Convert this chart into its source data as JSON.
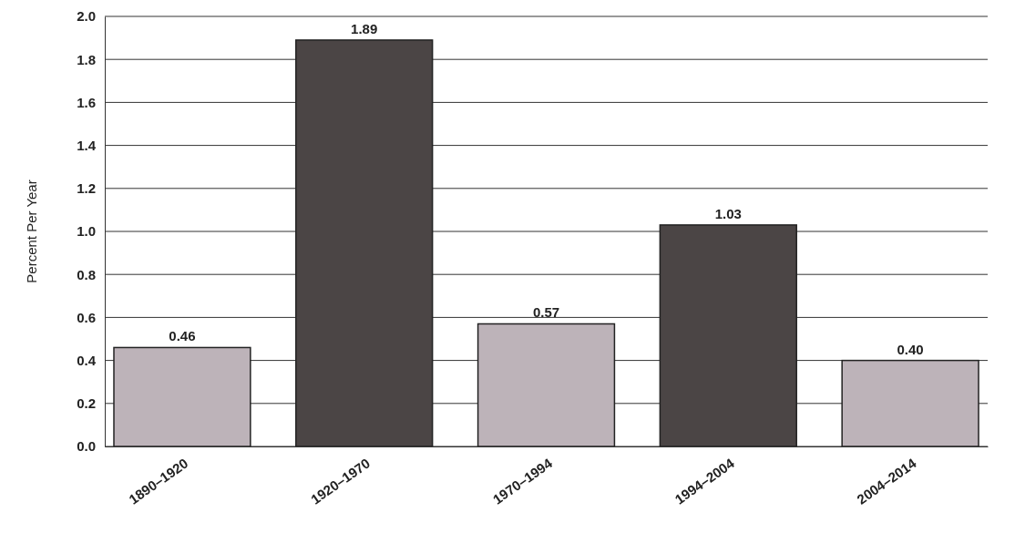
{
  "chart_data": {
    "type": "bar",
    "ylabel": "Percent Per Year",
    "categories": [
      "1890–1920",
      "1920–1970",
      "1970–1994",
      "1994–2004",
      "2004–2014"
    ],
    "values": [
      0.46,
      1.89,
      0.57,
      1.03,
      0.4
    ],
    "colors": [
      "#bdb3b9",
      "#4b4545",
      "#bdb3b9",
      "#4b4545",
      "#bdb3b9"
    ],
    "ylim": [
      0,
      2.0
    ],
    "yticks": [
      {
        "value": 0,
        "label": "0.0"
      },
      {
        "value": 0.2,
        "label": "0.2"
      },
      {
        "value": 0.4,
        "label": "0.4"
      },
      {
        "value": 0.6,
        "label": "0.6"
      },
      {
        "value": 0.8,
        "label": "0.8"
      },
      {
        "value": 1.0,
        "label": "1.0"
      },
      {
        "value": 1.2,
        "label": "1.2"
      },
      {
        "value": 1.4,
        "label": "1.4"
      },
      {
        "value": 1.6,
        "label": "1.6"
      },
      {
        "value": 1.8,
        "label": "1.8"
      },
      {
        "value": 2.0,
        "label": "2.0"
      }
    ],
    "value_labels": [
      "0.46",
      "1.89",
      "0.57",
      "1.03",
      "0.40"
    ],
    "grid": "y"
  }
}
